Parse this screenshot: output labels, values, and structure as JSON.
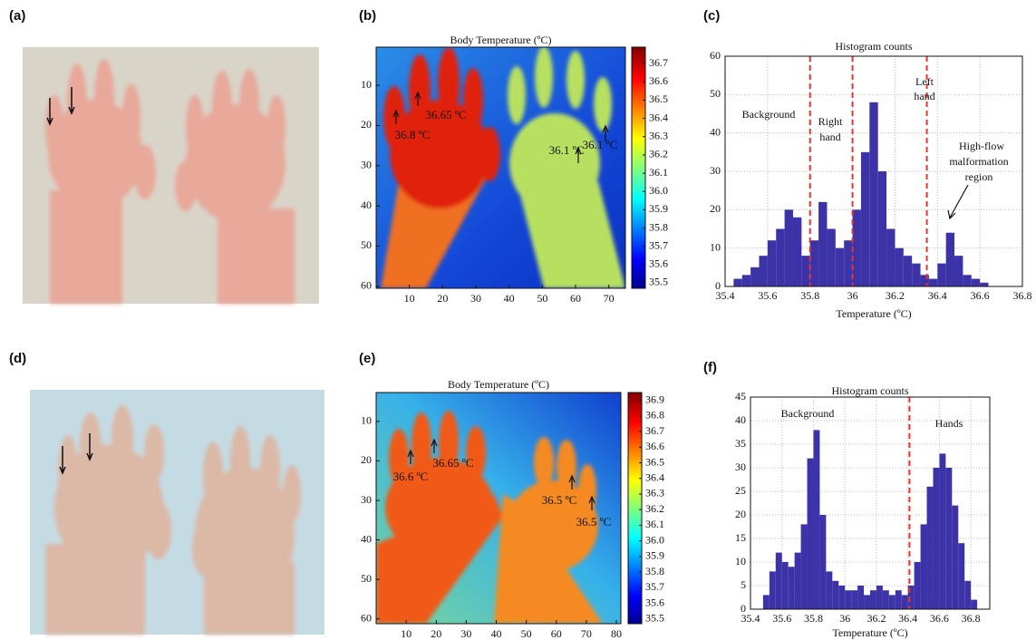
{
  "panel_labels": [
    "(a)",
    "(b)",
    "(c)",
    "(d)",
    "(e)",
    "(f)"
  ],
  "chart_data": [
    {
      "type": "heatmap",
      "title": "Body Temperature (ºC)",
      "colormap": "jet",
      "xlim": [
        0,
        75
      ],
      "xticks": [
        10,
        20,
        30,
        40,
        50,
        60,
        70
      ],
      "ylim": [
        0.5,
        60.5
      ],
      "yticks": [
        10,
        20,
        30,
        40,
        50,
        60
      ],
      "clim": [
        35.47,
        36.79
      ],
      "cticks": [
        36.7,
        36.6,
        36.5,
        36.4,
        36.3,
        36.2,
        36.1,
        {
          "value": 36,
          "label": "36.0"
        },
        35.9,
        35.8,
        35.7,
        35.6,
        35.5
      ],
      "annotations": [
        "36.65 ºC",
        "36.8 ºC",
        "36.1 ºC",
        "36.1 ºC"
      ]
    },
    {
      "type": "histogram",
      "title": "Histogram counts",
      "xlabel": "Temperature (ºC)",
      "color": "#3d33a8",
      "grid": true,
      "bins": [
        35.44,
        35.48,
        35.52,
        35.56,
        35.6,
        35.64,
        35.68,
        35.72,
        35.76,
        35.8,
        35.84,
        35.88,
        35.92,
        35.96,
        36,
        36.04,
        36.08,
        36.12,
        36.16,
        36.2,
        36.24,
        36.28,
        36.32,
        36.36,
        36.4,
        36.44,
        36.48,
        36.52,
        36.56,
        36.6,
        36.64
      ],
      "counts": [
        2,
        3,
        5,
        8,
        12,
        15,
        20,
        18,
        8,
        12,
        22,
        15,
        10,
        12,
        20,
        35,
        48,
        30,
        15,
        10,
        8,
        6,
        3,
        2,
        6,
        14,
        8,
        3,
        2,
        1
      ],
      "xlim": [
        35.4,
        36.8
      ],
      "xticks": [
        35.4,
        35.6,
        35.8,
        36,
        36.2,
        36.4,
        36.6,
        36.8
      ],
      "ylim": [
        0,
        60
      ],
      "yticks": [
        0,
        10,
        20,
        30,
        40,
        50,
        60
      ],
      "vlines": [
        35.8,
        36,
        36.35
      ],
      "vline_color": "#e8322e",
      "annotations": [
        [
          "Background"
        ],
        [
          "Right",
          "hand"
        ],
        [
          "Left",
          "hand"
        ],
        [
          "High-flow",
          "malformation",
          "region"
        ]
      ]
    },
    {
      "type": "heatmap",
      "title": "Body Temperature (ºC)",
      "colormap": "jet",
      "xlim": [
        0,
        81.5
      ],
      "xticks": [
        10,
        20,
        30,
        40,
        50,
        60,
        70,
        80
      ],
      "ylim": [
        2.7,
        61.2
      ],
      "yticks": [
        10,
        20,
        30,
        40,
        50,
        60
      ],
      "clim": [
        35.47,
        36.95
      ],
      "cticks": [
        36.9,
        36.8,
        36.7,
        36.6,
        36.5,
        36.4,
        36.3,
        36.2,
        36.1,
        {
          "value": 36,
          "label": "36.0"
        },
        35.9,
        35.8,
        35.7,
        35.6,
        35.5
      ],
      "annotations": [
        "36.6 ºC",
        "36.65 ºC",
        "36.5 ºC",
        "36.5 ºC"
      ]
    },
    {
      "type": "histogram",
      "title": "Histogram counts",
      "xlabel": "Temperature (ºC)",
      "color": "#3d33a8",
      "grid": true,
      "bins": [
        35.48,
        35.52,
        35.56,
        35.6,
        35.64,
        35.68,
        35.72,
        35.76,
        35.8,
        35.84,
        35.88,
        35.92,
        35.96,
        36,
        36.04,
        36.08,
        36.12,
        36.16,
        36.2,
        36.24,
        36.28,
        36.32,
        36.36,
        36.4,
        36.44,
        36.48,
        36.52,
        36.56,
        36.6,
        36.64,
        36.68,
        36.72,
        36.76,
        36.8,
        36.84
      ],
      "counts": [
        3,
        8,
        12,
        10,
        9,
        12,
        18,
        32,
        38,
        20,
        8,
        6,
        5,
        4,
        4,
        5,
        3,
        4,
        5,
        4,
        3,
        4,
        3,
        5,
        10,
        18,
        26,
        30,
        33,
        30,
        22,
        14,
        6,
        2
      ],
      "xlim": [
        35.4,
        36.92
      ],
      "xticks": [
        35.4,
        35.6,
        35.8,
        36,
        36.2,
        36.4,
        36.6,
        36.8
      ],
      "ylim": [
        0,
        45
      ],
      "yticks": [
        0,
        5,
        10,
        15,
        20,
        25,
        30,
        35,
        40,
        45
      ],
      "vlines": [
        36.41
      ],
      "vline_color": "#e8322e",
      "annotations": [
        [
          "Background"
        ],
        [
          "Hands"
        ]
      ]
    }
  ]
}
